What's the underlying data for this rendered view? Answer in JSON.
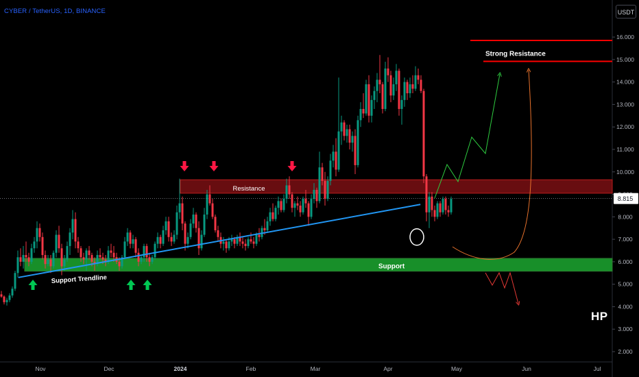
{
  "header": {
    "title": "CYBER / TetherUS, 1D, BINANCE",
    "unit": "USDT",
    "watermark": "HP"
  },
  "chart_data": {
    "type": "candlestick",
    "ylim": [
      1.7,
      17.3
    ],
    "y_ticks": [
      "2.000",
      "3.000",
      "4.000",
      "5.000",
      "6.000",
      "7.000",
      "8.000",
      "9.000",
      "10.000",
      "11.000",
      "12.000",
      "13.000",
      "14.000",
      "15.000",
      "16.000"
    ],
    "x_ticks": [
      "Nov",
      "Dec",
      "2024",
      "Feb",
      "Mar",
      "Apr",
      "May",
      "Jun",
      "Jul"
    ],
    "last_price": 8.815,
    "last_price_label": "8.815",
    "candles": [
      [
        4.55,
        4.7,
        4.4,
        4.45
      ],
      [
        4.45,
        4.5,
        4.1,
        4.2
      ],
      [
        4.2,
        4.4,
        4.05,
        4.3
      ],
      [
        4.3,
        4.6,
        4.2,
        4.5
      ],
      [
        4.5,
        4.9,
        4.4,
        4.8
      ],
      [
        4.8,
        5.6,
        4.7,
        5.5
      ],
      [
        5.5,
        6.5,
        5.3,
        6.2
      ],
      [
        6.2,
        6.6,
        5.8,
        6.0
      ],
      [
        6.0,
        6.7,
        5.7,
        6.3
      ],
      [
        6.3,
        6.9,
        6.0,
        6.2
      ],
      [
        6.2,
        6.4,
        5.8,
        6.0
      ],
      [
        6.0,
        6.8,
        5.9,
        6.6
      ],
      [
        6.6,
        7.1,
        6.4,
        6.9
      ],
      [
        6.9,
        7.8,
        6.6,
        7.5
      ],
      [
        7.5,
        7.7,
        6.9,
        7.1
      ],
      [
        7.1,
        7.3,
        6.1,
        6.3
      ],
      [
        6.3,
        6.5,
        5.7,
        5.9
      ],
      [
        5.9,
        6.3,
        5.8,
        6.1
      ],
      [
        6.1,
        6.3,
        5.5,
        5.8
      ],
      [
        5.8,
        6.5,
        5.7,
        6.4
      ],
      [
        6.4,
        7.4,
        6.2,
        7.2
      ],
      [
        7.2,
        7.6,
        6.4,
        6.6
      ],
      [
        6.6,
        6.8,
        5.4,
        5.8
      ],
      [
        5.8,
        6.3,
        5.6,
        6.1
      ],
      [
        6.1,
        6.9,
        6.0,
        6.7
      ],
      [
        6.7,
        7.5,
        6.3,
        7.3
      ],
      [
        7.3,
        8.3,
        7.0,
        7.9
      ],
      [
        7.9,
        8.2,
        6.6,
        6.9
      ],
      [
        6.9,
        7.1,
        6.4,
        6.6
      ],
      [
        6.6,
        6.7,
        6.0,
        6.2
      ],
      [
        6.2,
        6.4,
        5.9,
        6.1
      ],
      [
        6.1,
        6.6,
        5.6,
        6.5
      ],
      [
        6.5,
        6.7,
        6.1,
        6.3
      ],
      [
        6.3,
        6.4,
        5.8,
        6.0
      ],
      [
        6.0,
        6.2,
        5.6,
        5.9
      ],
      [
        5.9,
        6.5,
        5.8,
        6.3
      ],
      [
        6.3,
        6.6,
        6.1,
        6.2
      ],
      [
        6.2,
        6.4,
        5.9,
        6.1
      ],
      [
        6.1,
        6.3,
        5.8,
        6.0
      ],
      [
        6.0,
        6.7,
        5.9,
        6.5
      ],
      [
        6.5,
        6.8,
        6.2,
        6.4
      ],
      [
        6.4,
        6.7,
        6.0,
        6.2
      ],
      [
        6.2,
        6.4,
        5.9,
        6.0
      ],
      [
        6.0,
        6.2,
        5.6,
        5.8
      ],
      [
        5.8,
        6.3,
        5.7,
        6.2
      ],
      [
        6.2,
        7.1,
        6.1,
        6.9
      ],
      [
        6.9,
        7.5,
        6.7,
        7.3
      ],
      [
        7.3,
        7.4,
        6.6,
        6.8
      ],
      [
        6.8,
        7.2,
        6.6,
        7.0
      ],
      [
        7.0,
        7.1,
        6.2,
        6.4
      ],
      [
        6.4,
        6.6,
        5.8,
        6.0
      ],
      [
        6.0,
        6.3,
        5.9,
        6.2
      ],
      [
        6.2,
        6.8,
        6.0,
        6.7
      ],
      [
        6.7,
        6.8,
        6.0,
        6.2
      ],
      [
        6.2,
        6.4,
        5.8,
        6.0
      ],
      [
        6.0,
        6.3,
        5.9,
        6.2
      ],
      [
        6.2,
        6.9,
        6.1,
        6.8
      ],
      [
        6.8,
        7.3,
        6.6,
        7.1
      ],
      [
        7.1,
        7.2,
        6.6,
        6.8
      ],
      [
        6.8,
        7.6,
        6.7,
        7.4
      ],
      [
        7.4,
        8.0,
        7.2,
        7.8
      ],
      [
        7.8,
        8.0,
        6.9,
        7.1
      ],
      [
        7.1,
        7.3,
        6.7,
        6.9
      ],
      [
        6.9,
        7.4,
        6.8,
        7.2
      ],
      [
        7.2,
        8.5,
        7.0,
        8.2
      ],
      [
        8.2,
        9.7,
        7.9,
        8.6
      ],
      [
        8.6,
        8.9,
        7.4,
        7.7
      ],
      [
        7.7,
        7.8,
        6.5,
        6.8
      ],
      [
        6.8,
        7.3,
        6.6,
        7.1
      ],
      [
        7.1,
        7.9,
        7.0,
        7.7
      ],
      [
        7.7,
        8.4,
        7.5,
        8.1
      ],
      [
        8.1,
        8.2,
        7.3,
        7.5
      ],
      [
        7.5,
        7.8,
        6.3,
        6.6
      ],
      [
        6.6,
        7.4,
        6.5,
        7.2
      ],
      [
        7.2,
        8.4,
        7.1,
        8.1
      ],
      [
        8.1,
        9.2,
        7.9,
        9.0
      ],
      [
        9.0,
        9.4,
        8.5,
        8.6
      ],
      [
        8.6,
        8.8,
        7.9,
        8.0
      ],
      [
        8.0,
        8.1,
        7.3,
        7.4
      ],
      [
        7.4,
        7.6,
        6.9,
        7.1
      ],
      [
        7.1,
        7.3,
        6.6,
        6.8
      ],
      [
        6.8,
        7.1,
        6.5,
        6.9
      ],
      [
        6.9,
        7.0,
        6.4,
        6.6
      ],
      [
        6.6,
        7.1,
        6.5,
        6.9
      ],
      [
        6.9,
        7.2,
        6.7,
        7.0
      ],
      [
        7.0,
        7.1,
        6.6,
        6.8
      ],
      [
        6.8,
        7.2,
        6.7,
        7.1
      ],
      [
        7.1,
        7.3,
        6.7,
        6.9
      ],
      [
        6.9,
        7.1,
        6.6,
        6.8
      ],
      [
        6.8,
        7.0,
        6.5,
        6.7
      ],
      [
        6.7,
        7.1,
        6.6,
        7.0
      ],
      [
        7.0,
        7.3,
        6.8,
        6.9
      ],
      [
        6.9,
        7.1,
        6.6,
        6.8
      ],
      [
        6.8,
        7.3,
        6.7,
        7.2
      ],
      [
        7.2,
        7.5,
        6.9,
        7.1
      ],
      [
        7.1,
        7.6,
        7.0,
        7.5
      ],
      [
        7.5,
        7.9,
        7.2,
        7.4
      ],
      [
        7.4,
        8.0,
        7.3,
        7.8
      ],
      [
        7.8,
        8.4,
        7.6,
        8.2
      ],
      [
        8.2,
        8.6,
        7.8,
        7.9
      ],
      [
        7.9,
        8.5,
        7.8,
        8.4
      ],
      [
        8.4,
        8.9,
        8.1,
        8.7
      ],
      [
        8.7,
        8.8,
        8.2,
        8.3
      ],
      [
        8.3,
        9.0,
        8.2,
        8.8
      ],
      [
        8.8,
        9.7,
        8.6,
        9.4
      ],
      [
        9.4,
        9.8,
        8.8,
        9.0
      ],
      [
        9.0,
        9.1,
        8.2,
        8.4
      ],
      [
        8.4,
        8.7,
        8.0,
        8.6
      ],
      [
        8.6,
        8.9,
        8.3,
        8.5
      ],
      [
        8.5,
        8.7,
        8.0,
        8.2
      ],
      [
        8.2,
        8.9,
        8.1,
        8.8
      ],
      [
        8.8,
        9.2,
        8.4,
        8.6
      ],
      [
        8.6,
        8.7,
        7.6,
        8.0
      ],
      [
        8.0,
        9.0,
        7.9,
        8.8
      ],
      [
        8.8,
        9.5,
        8.6,
        9.2
      ],
      [
        9.2,
        9.3,
        8.4,
        8.7
      ],
      [
        8.7,
        10.9,
        8.6,
        10.2
      ],
      [
        10.2,
        10.4,
        9.4,
        9.6
      ],
      [
        9.6,
        10.0,
        8.5,
        8.8
      ],
      [
        8.8,
        9.8,
        8.7,
        9.6
      ],
      [
        9.6,
        10.8,
        9.4,
        10.5
      ],
      [
        10.5,
        11.2,
        10.2,
        10.9
      ],
      [
        10.9,
        11.5,
        9.8,
        10.1
      ],
      [
        10.1,
        14.2,
        10.0,
        11.8
      ],
      [
        11.8,
        12.5,
        11.2,
        12.2
      ],
      [
        12.2,
        12.3,
        11.4,
        11.6
      ],
      [
        11.6,
        12.1,
        11.3,
        11.9
      ],
      [
        11.9,
        12.1,
        11.0,
        11.3
      ],
      [
        11.3,
        11.8,
        10.9,
        11.6
      ],
      [
        11.6,
        11.9,
        9.9,
        10.3
      ],
      [
        10.3,
        12.5,
        10.2,
        12.3
      ],
      [
        12.3,
        13.1,
        12.0,
        12.8
      ],
      [
        12.8,
        13.5,
        12.4,
        12.6
      ],
      [
        12.6,
        14.1,
        12.5,
        13.9
      ],
      [
        13.9,
        14.3,
        12.2,
        12.5
      ],
      [
        12.5,
        13.4,
        12.2,
        13.2
      ],
      [
        13.2,
        13.8,
        12.8,
        13.6
      ],
      [
        13.6,
        14.4,
        13.1,
        14.1
      ],
      [
        14.1,
        15.2,
        13.5,
        13.9
      ],
      [
        13.9,
        14.0,
        12.6,
        12.8
      ],
      [
        12.8,
        14.9,
        12.7,
        14.6
      ],
      [
        14.6,
        15.1,
        14.0,
        14.3
      ],
      [
        14.3,
        14.5,
        13.1,
        13.4
      ],
      [
        13.4,
        14.2,
        13.2,
        13.9
      ],
      [
        13.9,
        14.8,
        13.6,
        14.5
      ],
      [
        14.5,
        14.6,
        12.5,
        12.8
      ],
      [
        12.8,
        13.4,
        12.1,
        13.2
      ],
      [
        13.2,
        14.2,
        12.9,
        14.0
      ],
      [
        14.0,
        14.1,
        13.2,
        13.5
      ],
      [
        13.5,
        14.2,
        13.3,
        13.9
      ],
      [
        13.9,
        14.3,
        13.5,
        13.7
      ],
      [
        13.7,
        14.7,
        13.6,
        14.3
      ],
      [
        14.3,
        14.6,
        13.9,
        14.1
      ],
      [
        14.1,
        14.3,
        13.5,
        13.6
      ],
      [
        13.6,
        13.7,
        9.5,
        9.8
      ],
      [
        9.8,
        9.9,
        7.8,
        8.2
      ],
      [
        8.2,
        9.1,
        7.5,
        8.9
      ],
      [
        8.9,
        9.1,
        8.0,
        8.3
      ],
      [
        8.3,
        8.5,
        7.8,
        8.0
      ],
      [
        8.0,
        8.7,
        7.9,
        8.6
      ],
      [
        8.6,
        8.7,
        8.0,
        8.2
      ],
      [
        8.2,
        8.9,
        8.1,
        8.8
      ],
      [
        8.8,
        8.9,
        8.1,
        8.3
      ],
      [
        8.3,
        8.5,
        8.0,
        8.2
      ],
      [
        8.2,
        8.9,
        8.1,
        8.8
      ]
    ],
    "annotations": {
      "resistance_label": "Resistance",
      "resistance_zone": [
        9.05,
        9.65
      ],
      "support_label": "Support",
      "support_zone": [
        5.58,
        6.15
      ],
      "trendline_label": "Support Trendline",
      "trendline": [
        [
          6.2,
          5.3
        ],
        [
          152.8,
          8.55
        ]
      ],
      "strong_resistance_label": "Strong Resistance",
      "strong_resistance_levels": [
        15.85,
        14.92
      ]
    }
  },
  "colors": {
    "up": "#089981",
    "down": "#f23645",
    "up_arrow": "#00c853",
    "down_arrow": "#ff1744",
    "trendline": "#2196f3",
    "resistance_fill": "#7a0f13",
    "support_fill": "#1b9f2d",
    "strong_resistance": "#ff0000",
    "projection_up": "#2ecc40",
    "projection_curve": "#e8722c",
    "projection_down": "#e53935",
    "axis_text": "#b2b5be"
  }
}
